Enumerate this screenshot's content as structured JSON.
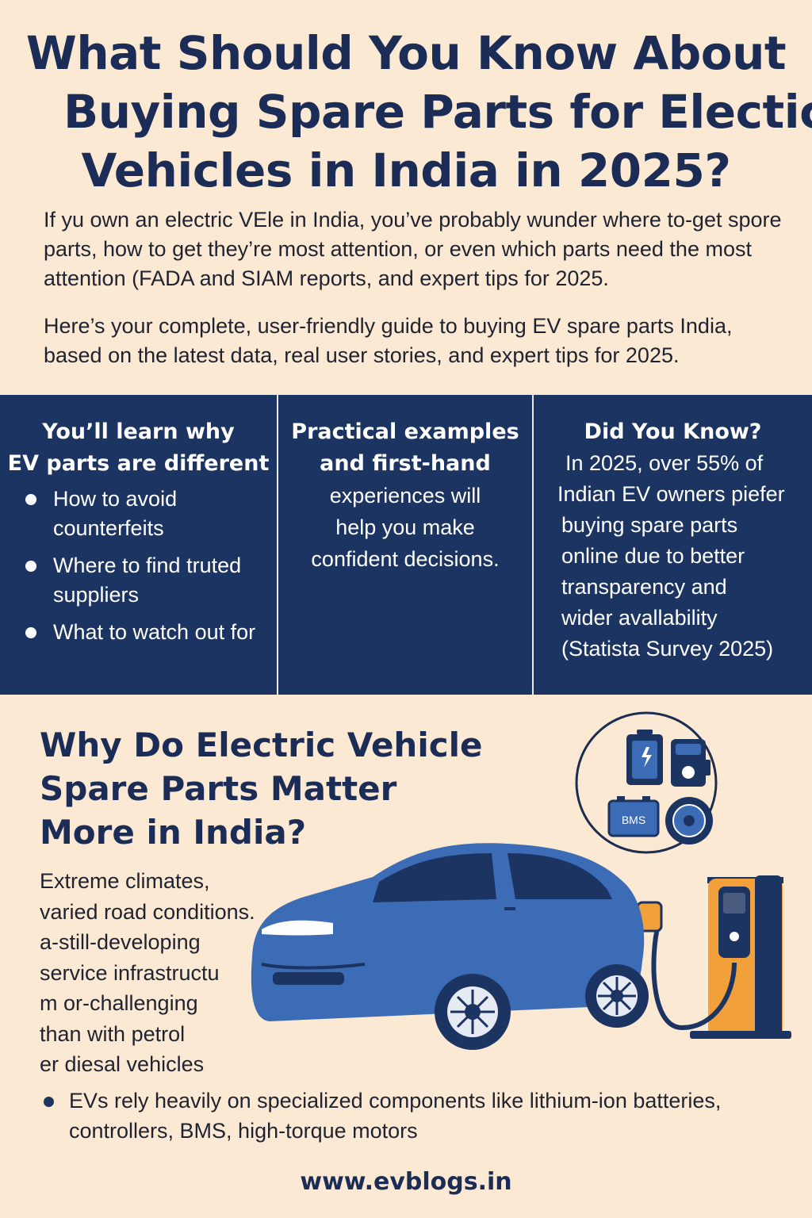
{
  "title": {
    "line1": "What Should You Know About",
    "line2": "Buying Spare Parts for Electic",
    "line3": "Vehicles in India in 2025?"
  },
  "intro": {
    "p1": "If yu own an electric VEle in India, you’ve probably wunder where to-get spore parts, how to get they’re most attention, or even which parts need the most attention (FADA and SIAM reports, and expert tips for 2025.",
    "p2": "Here’s your complete, user-friendly guide to buying EV spare parts India, based on the latest data, real user stories, and expert tips for 2025."
  },
  "columns": {
    "learn": {
      "heading_line1": "You’ll learn why",
      "heading_line2": "EV parts are different",
      "items": [
        "How to avoid counterfeits",
        "Where to find truted suppliers",
        "What to watch out for"
      ]
    },
    "practical": {
      "heading_line1": "Practical examples",
      "heading_line2": "and first-hand",
      "body_line1": "experiences will",
      "body_line2": "help you make",
      "body_line3": "confident decisions."
    },
    "did_you_know": {
      "heading": "Did You Know?",
      "lines": [
        "In 2025, over 55% of",
        "Indian EV owners piefer",
        "buying spare parts",
        "online due to better",
        "transparency and",
        "wider avallability",
        "(Statista Survey 2025)"
      ]
    }
  },
  "section2": {
    "heading_lines": [
      "Why Do Electric Vehicle",
      "Spare Parts Matter",
      "More in India?"
    ],
    "para_lines": [
      "Extreme climates,",
      "varied road conditions.",
      "a-still-developing",
      "service infrastructu",
      "m or-challenging",
      "than with petrol",
      "er diesal vehicles"
    ],
    "bullet": "EVs rely heavily on  specialized components like lithium-ion batteries, controllers, BMS, high-torque motors"
  },
  "illustration": {
    "bms_label": "BMS",
    "car_color": "#3c6cb6",
    "charger_color": "#f2a03a"
  },
  "footer": {
    "site": "www.evblogs.in"
  },
  "colors": {
    "navy": "#1c3461",
    "background": "#fbe9d3"
  }
}
